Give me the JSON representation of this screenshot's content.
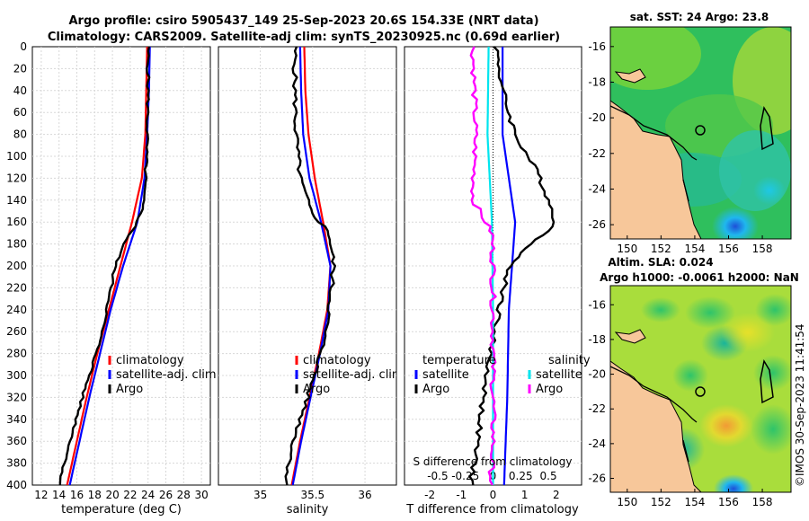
{
  "header": {
    "title_line1": "Argo profile: csiro 5905437_149 25-Sep-2023 20.6S 154.33E (NRT data)",
    "title_line2": "Climatology: CARS2009. Satellite-adj clim: synTS_20230925.nc (0.69d earlier)"
  },
  "watermark": "©IMOS 30-Sep-2023 11:41:54",
  "colors": {
    "climatology": "#ff0000",
    "satellite": "#0000ff",
    "argo": "#000000",
    "sal_sat": "#00e5ee",
    "sal_diff": "#ff00ff",
    "land": "#f7c79a"
  },
  "chart_data": [
    {
      "type": "line",
      "id": "temperature",
      "xlabel": "temperature (deg C)",
      "ylabel": "",
      "xlim": [
        11,
        31
      ],
      "ylim": [
        0,
        400
      ],
      "xticks": [
        "12",
        "14",
        "16",
        "18",
        "20",
        "22",
        "24",
        "26",
        "28",
        "30"
      ],
      "yticks": [
        "0",
        "20",
        "40",
        "60",
        "80",
        "100",
        "120",
        "140",
        "160",
        "180",
        "200",
        "220",
        "240",
        "260",
        "280",
        "300",
        "320",
        "340",
        "360",
        "380",
        "400"
      ],
      "legend": [
        "climatology",
        "satellite-adj. clim",
        "Argo"
      ],
      "series": [
        {
          "name": "climatology",
          "depth": [
            0,
            40,
            80,
            120,
            160,
            200,
            240,
            280,
            320,
            360,
            400
          ],
          "values": [
            23.9,
            23.8,
            23.7,
            23.3,
            22.2,
            20.9,
            19.6,
            18.3,
            17.1,
            16.0,
            14.9
          ]
        },
        {
          "name": "satellite-adj. clim",
          "depth": [
            0,
            40,
            80,
            120,
            160,
            200,
            240,
            280,
            320,
            360,
            400
          ],
          "values": [
            24.2,
            24.1,
            23.9,
            23.6,
            22.8,
            21.2,
            19.8,
            18.6,
            17.4,
            16.3,
            15.2
          ]
        },
        {
          "name": "Argo",
          "depth": [
            0,
            40,
            80,
            120,
            150,
            160,
            180,
            200,
            240,
            280,
            320,
            360,
            400
          ],
          "values": [
            24.0,
            24.0,
            23.9,
            23.7,
            23.3,
            22.8,
            21.3,
            20.3,
            19.4,
            18.2,
            16.6,
            15.3,
            14.0
          ]
        }
      ]
    },
    {
      "type": "line",
      "id": "salinity",
      "xlabel": "salinity",
      "ylabel": "",
      "xlim": [
        34.6,
        36.3
      ],
      "ylim": [
        0,
        400
      ],
      "xticks": [
        "35",
        "35.5",
        "36"
      ],
      "legend": [
        "climatology",
        "satellite-adj. clim",
        "Argo"
      ],
      "series": [
        {
          "name": "climatology",
          "depth": [
            0,
            40,
            80,
            120,
            160,
            200,
            240,
            280,
            320,
            360,
            400
          ],
          "values": [
            35.42,
            35.43,
            35.46,
            35.52,
            35.6,
            35.67,
            35.64,
            35.56,
            35.47,
            35.38,
            35.3
          ]
        },
        {
          "name": "satellite-adj. clim",
          "depth": [
            0,
            40,
            80,
            120,
            160,
            200,
            240,
            280,
            320,
            360,
            400
          ],
          "values": [
            35.38,
            35.39,
            35.41,
            35.47,
            35.58,
            35.67,
            35.65,
            35.57,
            35.48,
            35.39,
            35.31
          ]
        },
        {
          "name": "Argo",
          "depth": [
            0,
            40,
            80,
            120,
            150,
            170,
            200,
            240,
            280,
            320,
            360,
            400
          ],
          "values": [
            35.33,
            35.33,
            35.34,
            35.38,
            35.48,
            35.66,
            35.7,
            35.66,
            35.58,
            35.45,
            35.32,
            35.24
          ]
        }
      ]
    },
    {
      "type": "line",
      "id": "differences",
      "xlabel": "T difference from climatology",
      "x2label": "S difference from climatology",
      "xlim": [
        -2.8,
        2.8
      ],
      "ylim": [
        0,
        400
      ],
      "xticks": [
        "-2",
        "-1",
        "0",
        "1",
        "2"
      ],
      "x2ticks": [
        "-0.5",
        "-0.25",
        "0",
        "0.25",
        "0.5"
      ],
      "legend_titles": [
        "temperature",
        "salinity"
      ],
      "legend": [
        "satellite",
        "Argo",
        "satellite",
        "Argo"
      ],
      "series": [
        {
          "name": "temperature satellite",
          "depth": [
            0,
            80,
            160,
            240,
            320,
            400
          ],
          "values": [
            0.3,
            0.3,
            0.7,
            0.5,
            0.45,
            0.35
          ]
        },
        {
          "name": "temperature Argo",
          "depth": [
            0,
            40,
            80,
            120,
            160,
            200,
            240,
            280,
            320,
            360,
            400
          ],
          "values": [
            0.1,
            0.3,
            0.7,
            1.5,
            2.0,
            0.5,
            0.2,
            -0.1,
            -0.3,
            -0.5,
            -0.7
          ]
        },
        {
          "name": "salinity satellite",
          "depth": [
            0,
            80,
            160,
            240,
            320,
            400
          ],
          "values": [
            -0.04,
            -0.05,
            -0.01,
            0.0,
            0.0,
            0.0
          ]
        },
        {
          "name": "salinity Argo",
          "depth": [
            0,
            40,
            80,
            140,
            170,
            200,
            240,
            280,
            320,
            360,
            400
          ],
          "values": [
            -0.18,
            -0.17,
            -0.16,
            -0.18,
            -0.01,
            0.0,
            0.0,
            0.0,
            0.0,
            0.0,
            -0.02
          ]
        }
      ]
    },
    {
      "type": "heatmap",
      "id": "sst-map",
      "title": "sat. SST: 24 Argo: 23.8",
      "xticks": [
        "150",
        "152",
        "154",
        "156",
        "158"
      ],
      "yticks": [
        "-16",
        "-18",
        "-20",
        "-22",
        "-24",
        "-26"
      ],
      "argo_position": {
        "lon": 154.33,
        "lat": -20.6
      }
    },
    {
      "type": "heatmap",
      "id": "sla-map",
      "title_line1": "Altim. SLA: 0.024",
      "title_line2": "Argo h1000: -0.0061 h2000: NaN",
      "xticks": [
        "150",
        "152",
        "154",
        "156",
        "158"
      ],
      "yticks": [
        "-16",
        "-18",
        "-20",
        "-22",
        "-24",
        "-26"
      ],
      "argo_position": {
        "lon": 154.33,
        "lat": -20.6
      }
    }
  ]
}
